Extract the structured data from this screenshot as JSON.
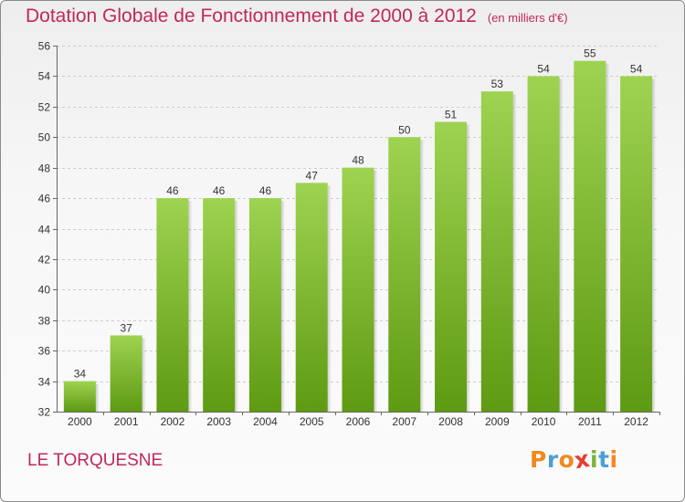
{
  "title": "Dotation Globale de Fonctionnement de 2000 à 2012",
  "unit_note": "(en milliers d'€)",
  "place_name": "LE TORQUESNE",
  "logo": {
    "text": "Proxiti",
    "letters": [
      "P",
      "r",
      "o",
      "x",
      "i",
      "t",
      "i"
    ],
    "letter_colors": [
      "#f08a1c",
      "#4aa0d8",
      "#f08a1c",
      "#e53d2e",
      "#7bb43a",
      "#4aa0d8",
      "#f08a1c"
    ]
  },
  "colors": {
    "title": "#c1275b",
    "bar_top": "#9ed351",
    "bar_bottom": "#5e9a12",
    "grid": "#cccccc",
    "axis_text": "#333333"
  },
  "chart_data": {
    "type": "bar",
    "categories": [
      "2000",
      "2001",
      "2002",
      "2003",
      "2004",
      "2005",
      "2006",
      "2007",
      "2008",
      "2009",
      "2010",
      "2011",
      "2012"
    ],
    "values": [
      34,
      37,
      46,
      46,
      46,
      47,
      48,
      50,
      51,
      53,
      54,
      55,
      54
    ],
    "ylim": [
      32,
      56
    ],
    "yticks": [
      32,
      34,
      36,
      38,
      40,
      42,
      44,
      46,
      48,
      50,
      52,
      54,
      56
    ],
    "grid": true,
    "data_labels": true
  }
}
